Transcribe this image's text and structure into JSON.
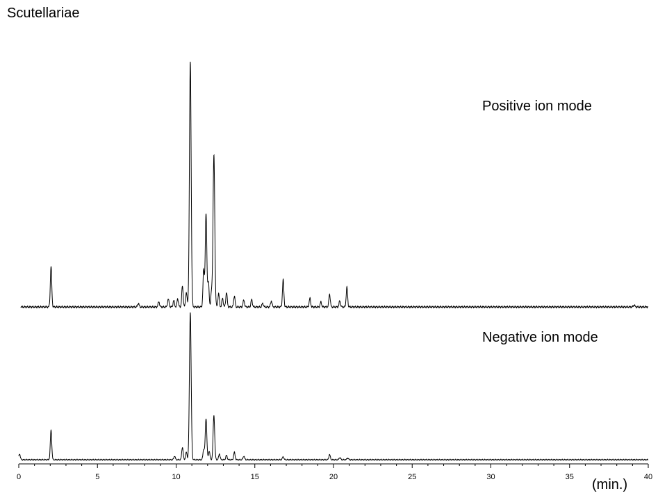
{
  "chart_data": {
    "type": "line",
    "title": "Scutellariae",
    "xlabel": "(min.)",
    "ylabel": "",
    "xlim": [
      0,
      40
    ],
    "xticks": [
      0,
      5,
      10,
      15,
      20,
      25,
      30,
      35,
      40
    ],
    "grid": false,
    "panels": [
      {
        "label": "Positive ion mode",
        "baseline": 0.02,
        "peaks": [
          [
            2.05,
            0.165
          ],
          [
            7.6,
            0.015
          ],
          [
            8.9,
            0.022
          ],
          [
            9.5,
            0.032
          ],
          [
            9.85,
            0.026
          ],
          [
            10.1,
            0.034
          ],
          [
            10.4,
            0.085
          ],
          [
            10.65,
            0.06
          ],
          [
            10.9,
            1.0
          ],
          [
            11.75,
            0.15
          ],
          [
            11.9,
            0.38
          ],
          [
            12.05,
            0.1
          ],
          [
            12.25,
            0.06
          ],
          [
            12.4,
            0.62
          ],
          [
            12.7,
            0.055
          ],
          [
            12.95,
            0.035
          ],
          [
            13.2,
            0.06
          ],
          [
            13.7,
            0.045
          ],
          [
            14.3,
            0.028
          ],
          [
            14.8,
            0.03
          ],
          [
            15.5,
            0.015
          ],
          [
            16.05,
            0.025
          ],
          [
            16.8,
            0.11
          ],
          [
            18.5,
            0.035
          ],
          [
            19.2,
            0.02
          ],
          [
            19.75,
            0.052
          ],
          [
            20.4,
            0.025
          ],
          [
            20.85,
            0.08
          ],
          [
            39.1,
            0.008
          ]
        ]
      },
      {
        "label": "Negative ion mode",
        "baseline": 0.02,
        "peaks": [
          [
            2.05,
            0.2
          ],
          [
            0.05,
            0.04
          ],
          [
            9.9,
            0.025
          ],
          [
            10.4,
            0.085
          ],
          [
            10.65,
            0.05
          ],
          [
            10.9,
            1.0
          ],
          [
            11.75,
            0.07
          ],
          [
            11.9,
            0.28
          ],
          [
            12.1,
            0.06
          ],
          [
            12.4,
            0.3
          ],
          [
            12.75,
            0.04
          ],
          [
            13.2,
            0.03
          ],
          [
            13.7,
            0.05
          ],
          [
            14.3,
            0.025
          ],
          [
            16.8,
            0.02
          ],
          [
            19.75,
            0.035
          ],
          [
            20.4,
            0.015
          ],
          [
            20.9,
            0.012
          ]
        ]
      }
    ]
  }
}
